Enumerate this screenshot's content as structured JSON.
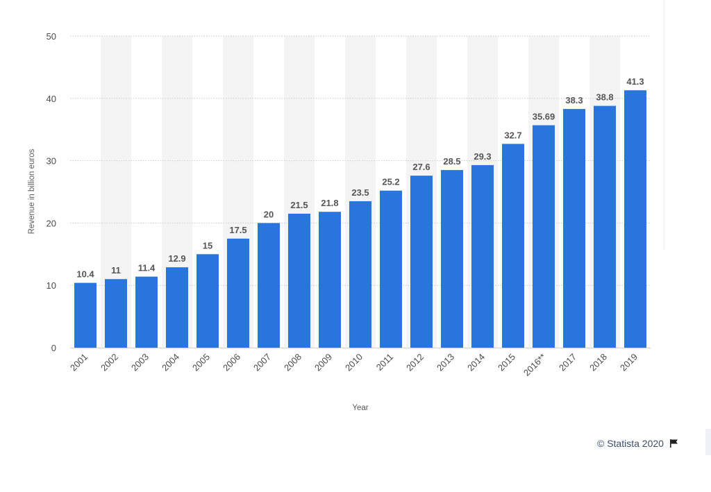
{
  "chart_data": {
    "type": "bar",
    "title": "",
    "xlabel": "Year",
    "ylabel": "Revenue in billion euros",
    "ylim": [
      0,
      50
    ],
    "yticks": [
      0,
      10,
      20,
      30,
      40,
      50
    ],
    "grid": true,
    "categories": [
      "2001",
      "2002",
      "2003",
      "2004",
      "2005",
      "2006",
      "2007",
      "2008",
      "2009",
      "2010",
      "2011",
      "2012",
      "2013",
      "2014",
      "2015",
      "2016**",
      "2017",
      "2018",
      "2019"
    ],
    "values": [
      10.4,
      11,
      11.4,
      12.9,
      15,
      17.5,
      20,
      21.5,
      21.8,
      23.5,
      25.2,
      27.6,
      28.5,
      29.3,
      32.7,
      35.69,
      38.3,
      38.8,
      41.3
    ],
    "data_labels": [
      "10.4",
      "11",
      "11.4",
      "12.9",
      "15",
      "17.5",
      "20",
      "21.5",
      "21.8",
      "23.5",
      "25.2",
      "27.6",
      "28.5",
      "29.3",
      "32.7",
      "35.69",
      "38.3",
      "38.8",
      "41.3"
    ],
    "bar_color": "#2876dd",
    "band_color": "#f4f4f4",
    "grid_color": "#c8c8c8"
  },
  "credit": {
    "text": "© Statista 2020",
    "icon": "flag-icon"
  }
}
